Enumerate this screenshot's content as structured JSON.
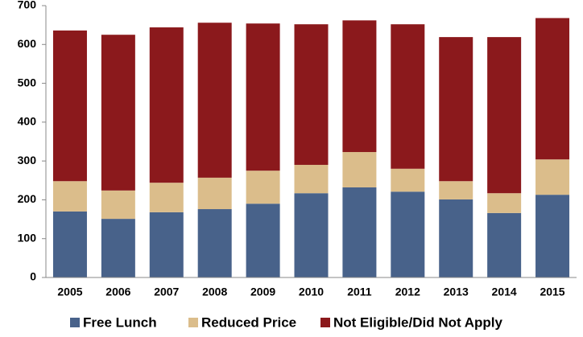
{
  "chart_data": {
    "type": "stacked-bar",
    "categories": [
      "2005",
      "2006",
      "2007",
      "2008",
      "2009",
      "2010",
      "2011",
      "2012",
      "2013",
      "2014",
      "2015"
    ],
    "series": [
      {
        "name": "Free Lunch",
        "color": "#48628a",
        "values": [
          170,
          151,
          168,
          176,
          190,
          217,
          232,
          221,
          201,
          166,
          213
        ]
      },
      {
        "name": "Reduced Price",
        "color": "#dbbd8b",
        "values": [
          78,
          73,
          76,
          81,
          85,
          73,
          91,
          59,
          47,
          51,
          91
        ]
      },
      {
        "name": "Not Eligible/Did Not Apply",
        "color": "#8b191c",
        "values": [
          388,
          401,
          400,
          399,
          379,
          362,
          339,
          372,
          371,
          402,
          364
        ]
      }
    ],
    "ylim": [
      0,
      700
    ],
    "yticks": [
      0,
      100,
      200,
      300,
      400,
      500,
      600,
      700
    ],
    "grid": false,
    "legend": "bottom"
  }
}
